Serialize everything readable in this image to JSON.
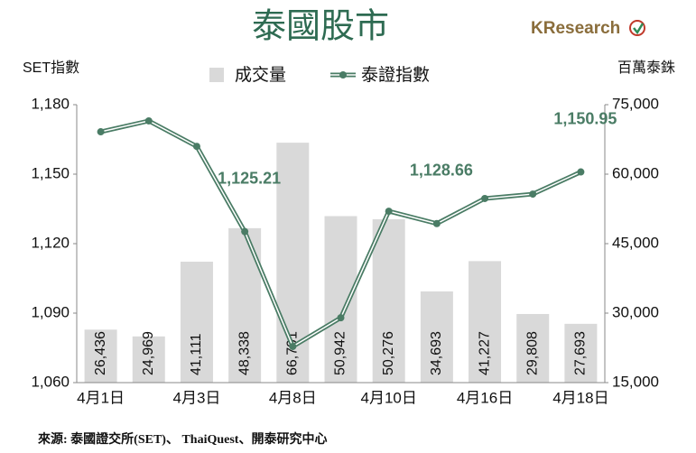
{
  "chart_data": {
    "type": "bar_line",
    "title": "泰國股市",
    "brand": "KResearch",
    "y_label": "SET指數",
    "y2_label": "百萬泰銖",
    "source": "來源: 泰國證交所(SET)、 ThaiQuest、開泰研究中心",
    "categories": [
      "4月1日",
      null,
      "4月3日",
      null,
      "4月8日",
      null,
      "4月10日",
      null,
      "4月16日",
      null,
      "4月18日"
    ],
    "series": [
      {
        "name": "成交量",
        "type": "bar",
        "axis": "y2",
        "color": "#d9d9d9",
        "values": [
          26436,
          24969,
          41111,
          48338,
          66791,
          50942,
          50276,
          34693,
          41227,
          29808,
          27693
        ],
        "value_labels": [
          "26,436",
          "24,969",
          "41,111",
          "48,338",
          "66,791",
          "50,942",
          "50,276",
          "34,693",
          "41,227",
          "29,808",
          "27,693"
        ]
      },
      {
        "name": "泰證指數",
        "type": "line",
        "axis": "y",
        "color": "#4a7c65",
        "values": [
          1168.3,
          1173,
          1162,
          1125.21,
          1075.6,
          1088,
          1134,
          1128.66,
          1139.5,
          1141.4,
          1150.95
        ],
        "value_labels": [
          null,
          null,
          null,
          "1,125.21",
          null,
          null,
          null,
          "1,128.66",
          null,
          null,
          "1,150.95"
        ]
      }
    ],
    "ylim": [
      1060,
      1180
    ],
    "yticks": [
      {
        "value": 1060,
        "label": "1,060"
      },
      {
        "value": 1090,
        "label": "1,090"
      },
      {
        "value": 1120,
        "label": "1,120"
      },
      {
        "value": 1150,
        "label": "1,150"
      },
      {
        "value": 1180,
        "label": "1,180"
      }
    ],
    "y2lim": [
      15000,
      75000
    ],
    "y2ticks": [
      {
        "value": 15000,
        "label": "15,000"
      },
      {
        "value": 30000,
        "label": "30,000"
      },
      {
        "value": 45000,
        "label": "45,000"
      },
      {
        "value": 60000,
        "label": "60,000"
      },
      {
        "value": 75000,
        "label": "75,000"
      }
    ]
  }
}
